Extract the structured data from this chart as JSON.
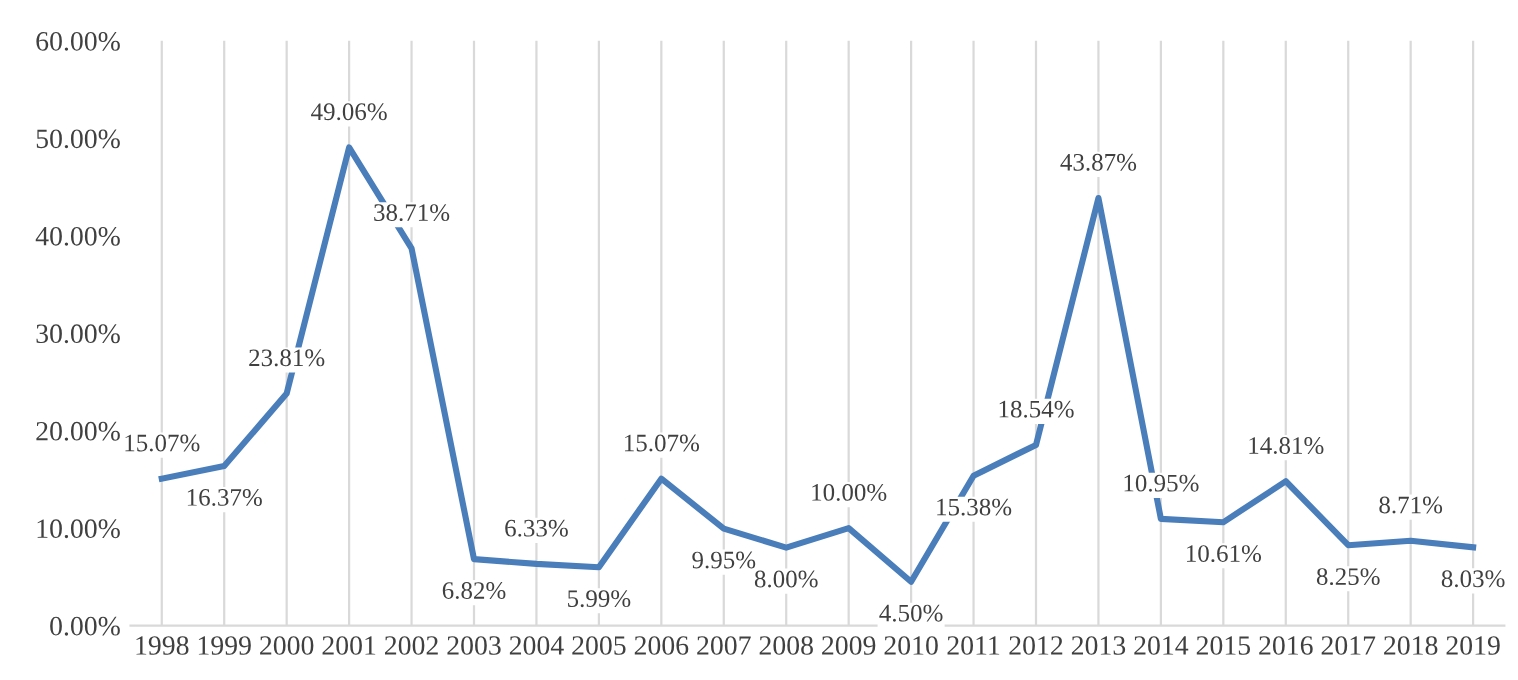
{
  "chart_data": {
    "type": "line",
    "categories": [
      "1998",
      "1999",
      "2000",
      "2001",
      "2002",
      "2003",
      "2004",
      "2005",
      "2006",
      "2007",
      "2008",
      "2009",
      "2010",
      "2011",
      "2012",
      "2013",
      "2014",
      "2015",
      "2016",
      "2017",
      "2018",
      "2019"
    ],
    "series": [
      {
        "color": "#4a7ebb",
        "values": [
          15.07,
          16.37,
          23.81,
          49.06,
          38.71,
          6.82,
          6.33,
          5.99,
          15.07,
          9.95,
          8.0,
          10.0,
          4.5,
          15.38,
          18.54,
          43.87,
          10.95,
          10.61,
          14.81,
          8.25,
          8.71,
          8.03
        ],
        "value_labels": [
          "15.07%",
          "16.37%",
          "23.81%",
          "49.06%",
          "38.71%",
          "6.82%",
          "6.33%",
          "5.99%",
          "15.07%",
          "9.95%",
          "8.00%",
          "10.00%",
          "4.50%",
          "15.38%",
          "18.54%",
          "43.87%",
          "10.95%",
          "10.61%",
          "14.81%",
          "8.25%",
          "8.71%",
          "8.03%"
        ]
      }
    ],
    "ylim": [
      0,
      60
    ],
    "yticks": [
      {
        "value": 0,
        "label": "0.00%"
      },
      {
        "value": 10,
        "label": "10.00%"
      },
      {
        "value": 20,
        "label": "20.00%"
      },
      {
        "value": 30,
        "label": "30.00%"
      },
      {
        "value": 40,
        "label": "40.00%"
      },
      {
        "value": 50,
        "label": "50.00%"
      },
      {
        "value": 60,
        "label": "60.00%"
      }
    ],
    "grid": "x",
    "marker": "none",
    "line_style": "solid"
  }
}
